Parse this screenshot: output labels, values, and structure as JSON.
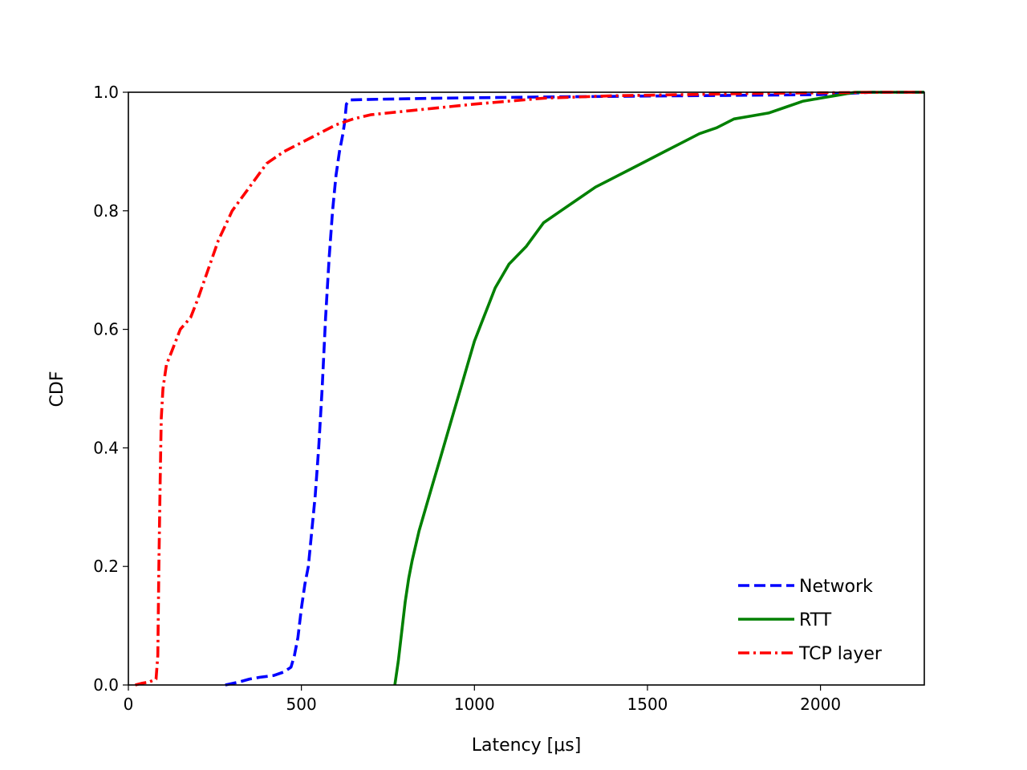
{
  "chart_data": {
    "type": "line",
    "title": "",
    "xlabel": "Latency [μs]",
    "ylabel": "CDF",
    "xlim": [
      0,
      2300
    ],
    "ylim": [
      0,
      1.0
    ],
    "xticks": [
      0,
      500,
      1000,
      1500,
      2000
    ],
    "yticks": [
      0.0,
      0.2,
      0.4,
      0.6,
      0.8,
      1.0
    ],
    "xtick_labels": [
      "0",
      "500",
      "1000",
      "1500",
      "2000"
    ],
    "ytick_labels": [
      "0.0",
      "0.2",
      "0.4",
      "0.6",
      "0.8",
      "1.0"
    ],
    "grid": false,
    "legend_position": "lower-right",
    "series": [
      {
        "name": "Network",
        "color": "#0000ff",
        "dash": "dashed",
        "x": [
          280,
          320,
          350,
          380,
          420,
          450,
          470,
          480,
          490,
          500,
          510,
          520,
          530,
          540,
          550,
          560,
          570,
          580,
          590,
          600,
          610,
          620,
          625,
          630,
          640,
          700,
          900,
          1200,
          1600,
          2000,
          2150,
          2300
        ],
        "y": [
          0.0,
          0.005,
          0.01,
          0.013,
          0.016,
          0.022,
          0.03,
          0.05,
          0.08,
          0.13,
          0.17,
          0.2,
          0.26,
          0.32,
          0.4,
          0.5,
          0.62,
          0.72,
          0.8,
          0.86,
          0.9,
          0.93,
          0.95,
          0.98,
          0.987,
          0.988,
          0.99,
          0.992,
          0.994,
          0.996,
          1.0,
          1.0
        ]
      },
      {
        "name": "RTT",
        "color": "#008000",
        "dash": "solid",
        "x": [
          770,
          780,
          790,
          800,
          810,
          820,
          840,
          860,
          880,
          900,
          920,
          940,
          960,
          980,
          1000,
          1020,
          1040,
          1060,
          1080,
          1100,
          1150,
          1200,
          1250,
          1300,
          1350,
          1400,
          1450,
          1500,
          1550,
          1600,
          1650,
          1700,
          1750,
          1800,
          1850,
          1900,
          1950,
          2000,
          2050,
          2100,
          2300
        ],
        "y": [
          0.0,
          0.04,
          0.09,
          0.14,
          0.18,
          0.21,
          0.26,
          0.3,
          0.34,
          0.38,
          0.42,
          0.46,
          0.5,
          0.54,
          0.58,
          0.61,
          0.64,
          0.67,
          0.69,
          0.71,
          0.74,
          0.78,
          0.8,
          0.82,
          0.84,
          0.855,
          0.87,
          0.885,
          0.9,
          0.915,
          0.93,
          0.94,
          0.955,
          0.96,
          0.965,
          0.975,
          0.985,
          0.99,
          0.995,
          1.0,
          1.0
        ]
      },
      {
        "name": "TCP layer",
        "color": "#ff0000",
        "dash": "dashdot",
        "x": [
          20,
          40,
          60,
          80,
          85,
          88,
          92,
          95,
          100,
          110,
          130,
          150,
          180,
          200,
          230,
          260,
          300,
          350,
          400,
          450,
          500,
          550,
          600,
          650,
          700,
          800,
          900,
          1000,
          1100,
          1200,
          1400,
          1600,
          1800,
          2000,
          2200,
          2300
        ],
        "y": [
          0.0,
          0.003,
          0.005,
          0.01,
          0.05,
          0.2,
          0.35,
          0.45,
          0.5,
          0.54,
          0.57,
          0.6,
          0.62,
          0.65,
          0.7,
          0.75,
          0.8,
          0.84,
          0.88,
          0.9,
          0.915,
          0.93,
          0.945,
          0.955,
          0.962,
          0.968,
          0.974,
          0.98,
          0.985,
          0.99,
          0.994,
          0.996,
          0.998,
          0.999,
          1.0,
          1.0
        ]
      }
    ]
  }
}
